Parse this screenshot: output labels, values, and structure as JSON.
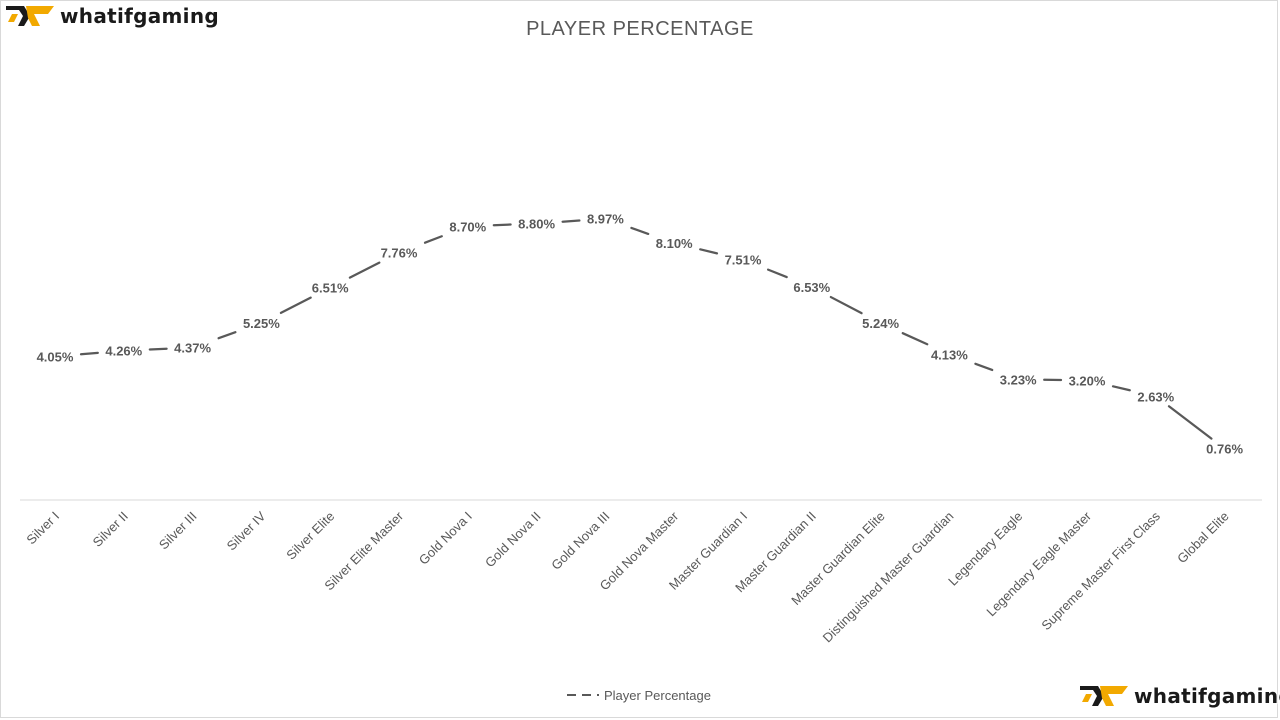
{
  "branding": {
    "logo_text": "whatifgaming",
    "logo_accent": "#f2a900",
    "logo_dark": "#1a1a1a"
  },
  "chart_data": {
    "type": "line",
    "title": "PLAYER PERCENTAGE",
    "categories": [
      "Silver I",
      "Silver II",
      "Silver III",
      "Silver IV",
      "Silver Elite",
      "Silver Elite Master",
      "Gold Nova I",
      "Gold Nova II",
      "Gold Nova III",
      "Gold Nova Master",
      "Master Guardian I",
      "Master Guardian II",
      "Master Guardian Elite",
      "Distinguished Master Guardian",
      "Legendary Eagle",
      "Legendary Eagle Master",
      "Supreme Master First Class",
      "Global Elite"
    ],
    "series": [
      {
        "name": "Player Percentage",
        "values": [
          4.05,
          4.26,
          4.37,
          5.25,
          6.51,
          7.76,
          8.7,
          8.8,
          8.97,
          8.1,
          7.51,
          6.53,
          5.24,
          4.13,
          3.23,
          3.2,
          2.63,
          0.76
        ],
        "data_labels": [
          "4.05%",
          "4.26%",
          "4.37%",
          "5.25%",
          "6.51%",
          "7.76%",
          "8.70%",
          "8.80%",
          "8.97%",
          "8.10%",
          "7.51%",
          "6.53%",
          "5.24%",
          "4.13%",
          "3.23%",
          "3.20%",
          "2.63%",
          "0.76%"
        ],
        "color": "#595959"
      }
    ],
    "xlabel": "",
    "ylabel": "",
    "ylim": [
      0,
      10
    ],
    "grid": false,
    "legend_position": "bottom",
    "line_color": "#595959",
    "axis_color": "#d9d9d9"
  }
}
